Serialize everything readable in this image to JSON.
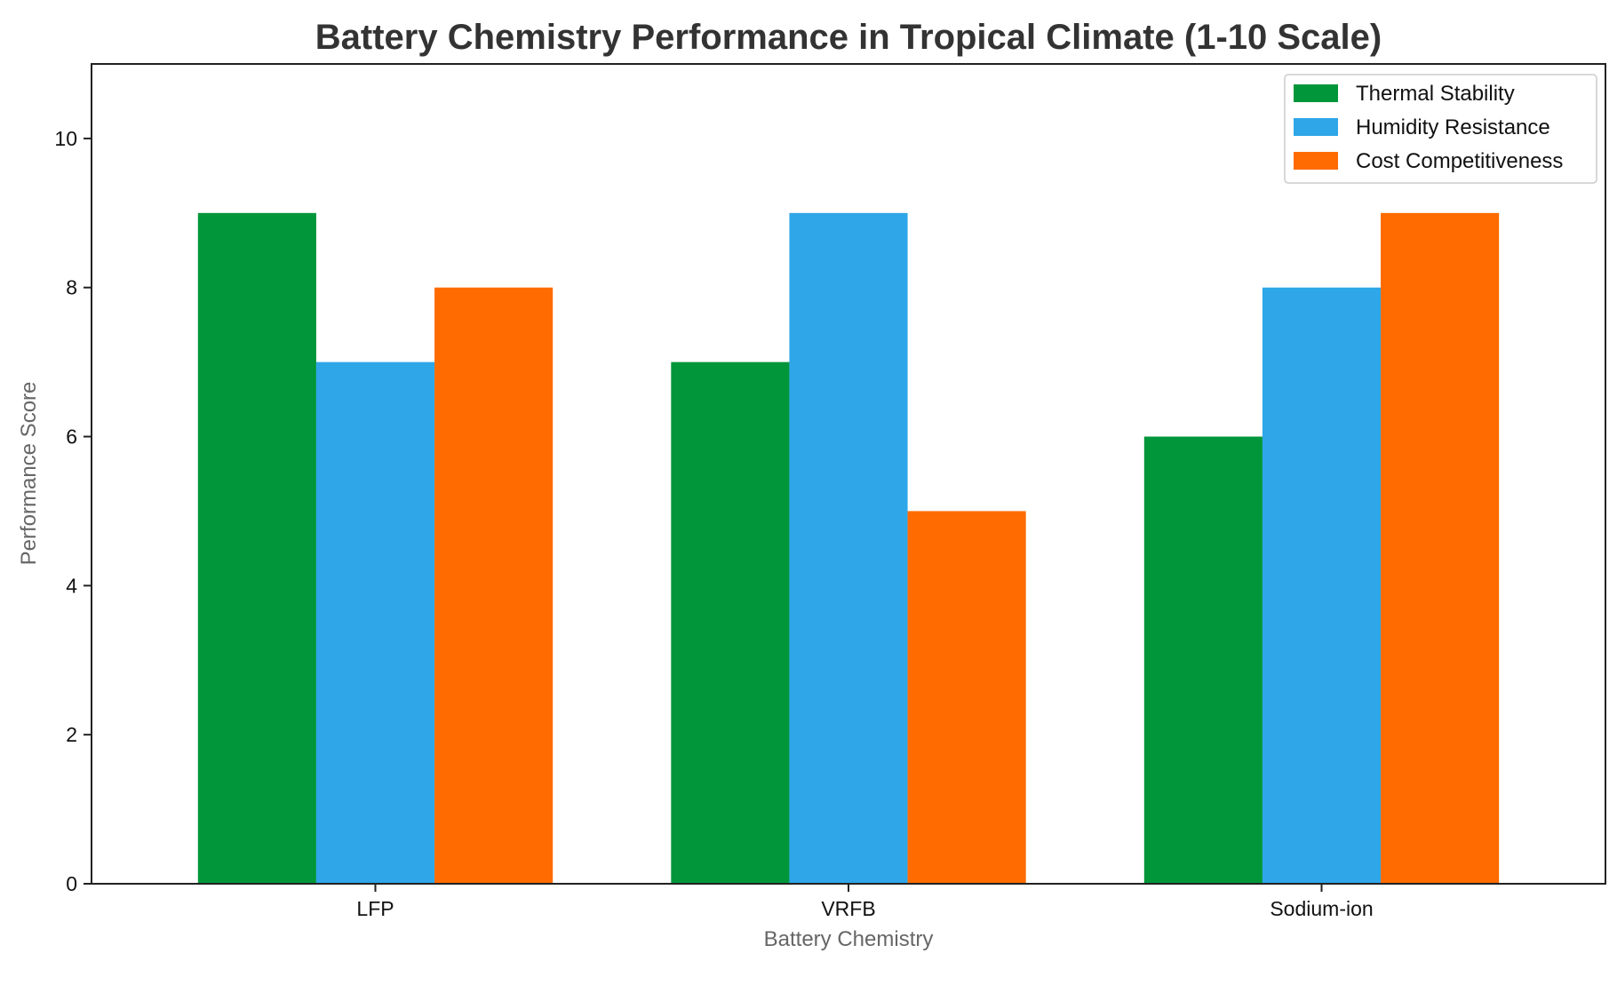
{
  "chart_data": {
    "type": "bar",
    "title": "Battery Chemistry Performance in Tropical Climate (1-10 Scale)",
    "xlabel": "Battery Chemistry",
    "ylabel": "Performance Score",
    "categories": [
      "LFP",
      "VRFB",
      "Sodium-ion"
    ],
    "series": [
      {
        "name": "Thermal Stability",
        "values": [
          9,
          7,
          6
        ],
        "color": "#009639"
      },
      {
        "name": "Humidity Resistance",
        "values": [
          7,
          9,
          8
        ],
        "color": "#2EA6E8"
      },
      {
        "name": "Cost Competitiveness",
        "values": [
          8,
          5,
          9
        ],
        "color": "#FF6B00"
      }
    ],
    "ylim": [
      0,
      11
    ],
    "yticks": [
      0,
      2,
      4,
      6,
      8,
      10
    ],
    "grid": false,
    "legend_position": "top-right"
  }
}
